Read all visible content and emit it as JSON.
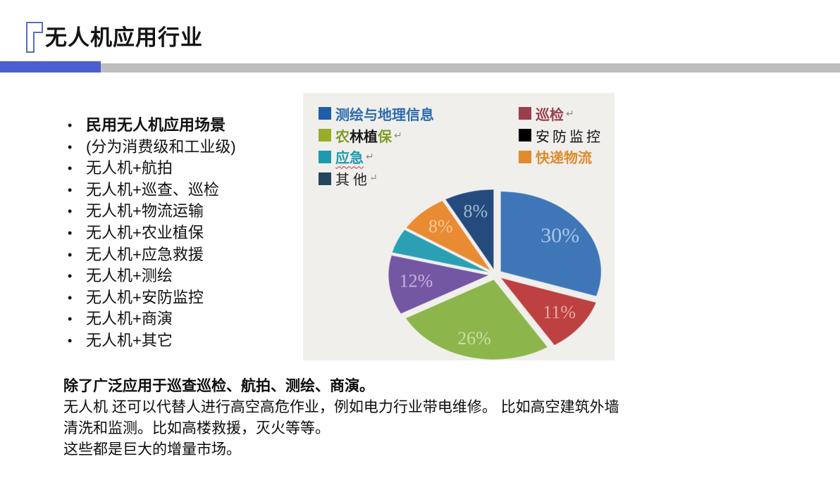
{
  "title": {
    "text": "无人机应用行业"
  },
  "bullets": {
    "marker": "•",
    "items": [
      {
        "text": "民用无人机应用场景"
      },
      {
        "text": "(分为消费级和工业级)"
      },
      {
        "text": "无人机+航拍"
      },
      {
        "text": "无人机+巡查、巡检"
      },
      {
        "text": "无人机+物流运输"
      },
      {
        "text": "无人机+农业植保"
      },
      {
        "text": "无人机+应急救援"
      },
      {
        "text": "无人机+测绘"
      },
      {
        "text": "无人机+安防监控"
      },
      {
        "text": "无人机+商演"
      },
      {
        "text": "无人机+其它"
      }
    ]
  },
  "chart": {
    "legend": {
      "left": [
        {
          "swatch": "#1F5FA7",
          "items": [
            {
              "text": "测绘与地理信息",
              "color": "#2B6CB0"
            }
          ],
          "mark": ""
        },
        {
          "swatch": "#9AAD29",
          "items": [
            {
              "text": "农",
              "color": "#7E9C28"
            },
            {
              "text": "林植",
              "color": "#1A1A1A"
            },
            {
              "text": "保",
              "color": "#7E9C28"
            }
          ],
          "mark": "↵"
        },
        {
          "swatch": "#1E9AAE",
          "items": [
            {
              "text": "应急",
              "color": "#1E9AAE"
            }
          ],
          "mark": "↵"
        },
        {
          "swatch": "#24465C",
          "items": [
            {
              "text": "其 他",
              "color": "#222222"
            }
          ],
          "mark": "↵"
        }
      ],
      "right": [
        {
          "swatch": "#9C3F4D",
          "items": [
            {
              "text": "巡检",
              "color": "#9C3F4D"
            }
          ],
          "mark": "↵"
        },
        {
          "swatch": "#000000",
          "items": [
            {
              "text": "安防监控",
              "color": "#111111"
            }
          ],
          "mark": ""
        },
        {
          "swatch": "#DF8B2E",
          "items": [
            {
              "text": "快递物流",
              "color": "#DF8B2E"
            }
          ],
          "mark": ""
        }
      ]
    }
  },
  "chart_data": {
    "type": "pie",
    "title": "",
    "legend_entries": [
      "测绘与地理信息",
      "农林植保",
      "应急",
      "其他",
      "巡检",
      "安防监控",
      "快递物流"
    ],
    "start_angle_deg": 0,
    "direction": "clockwise",
    "exploded": true,
    "slices": [
      {
        "name": "测绘与地理信息",
        "percent": 30,
        "label": "30%",
        "color": "#3F76B8",
        "label_color": "#A9C6E6",
        "label_size": 30,
        "label_r": 0.73
      },
      {
        "name": "巡检",
        "percent": 11,
        "label": "11%",
        "color": "#BC4140",
        "label_color": "#E7A9A7",
        "label_size": 26,
        "label_r": 0.74
      },
      {
        "name": "农林植保",
        "percent": 26,
        "label": "26%",
        "color": "#8CB54C",
        "label_color": "#C9DFA0",
        "label_size": 26,
        "label_r": 0.78
      },
      {
        "name": "",
        "percent": 12,
        "label": "12%",
        "color": "#7457A3",
        "label_color": "#C3B3DC",
        "label_size": 26,
        "label_r": 0.73
      },
      {
        "name": "应急",
        "percent": 5,
        "label": "",
        "color": "#2BA0B5",
        "label_color": "",
        "label_size": 0,
        "label_r": 0
      },
      {
        "name": "快递物流",
        "percent": 8,
        "label": "8%",
        "color": "#E98B33",
        "label_color": "#F6C995",
        "label_size": 26,
        "label_r": 0.73
      },
      {
        "name": "其他",
        "percent": 8,
        "label": "8%",
        "color": "#254A7D",
        "label_color": "#9FB9D8",
        "label_size": 26,
        "label_r": 0.73
      }
    ]
  },
  "footer": {
    "lines": [
      "除了广泛应用于巡查巡检、航拍、测绘、商演。",
      "无人机 还可以代替人进行高空高危作业，例如电力行业带电维修。 比如高空建筑外墙",
      "清洗和监测。比如高楼救援，灭火等等。",
      "这些都是巨大的增量市场。"
    ]
  }
}
